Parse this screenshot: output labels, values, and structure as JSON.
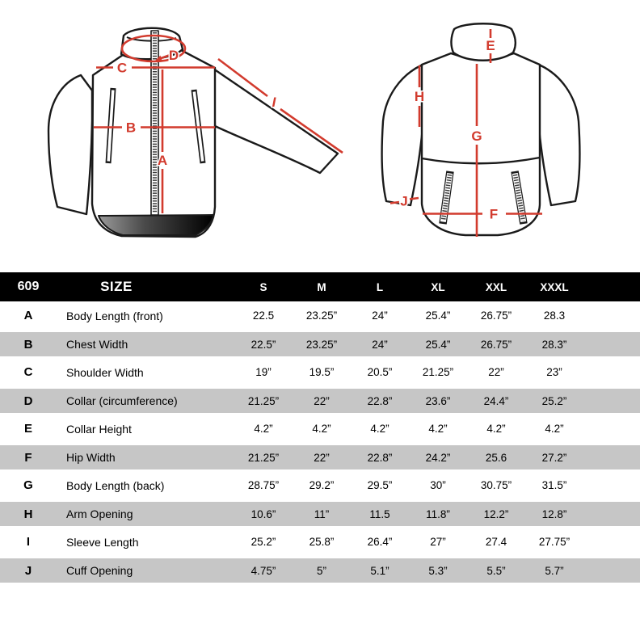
{
  "colors": {
    "accent_red": "#d23b2e",
    "outline_black": "#1a1a1a",
    "row_gray": "#c6c6c6",
    "header_bg": "#000000",
    "header_text": "#ffffff"
  },
  "diagram": {
    "front_labels": {
      "A": "A",
      "B": "B",
      "C": "C",
      "D": "D",
      "I": "I"
    },
    "back_labels": {
      "E": "E",
      "F": "F",
      "G": "G",
      "H": "H",
      "J": "J"
    }
  },
  "table": {
    "model": "609",
    "size_header": "SIZE",
    "columns": [
      "S",
      "M",
      "L",
      "XL",
      "XXL",
      "XXXL"
    ],
    "rows": [
      {
        "letter": "A",
        "label": "Body Length (front)",
        "values": [
          "22.5",
          "23.25”",
          "24”",
          "25.4”",
          "26.75”",
          "28.3"
        ]
      },
      {
        "letter": "B",
        "label": "Chest Width",
        "values": [
          "22.5”",
          "23.25”",
          "24”",
          "25.4”",
          "26.75”",
          "28.3”"
        ]
      },
      {
        "letter": "C",
        "label": "Shoulder Width",
        "values": [
          "19”",
          "19.5”",
          "20.5”",
          "21.25”",
          "22”",
          "23”"
        ]
      },
      {
        "letter": "D",
        "label": "Collar (circumference)",
        "values": [
          "21.25”",
          "22”",
          "22.8”",
          "23.6”",
          "24.4”",
          "25.2”"
        ]
      },
      {
        "letter": "E",
        "label": "Collar Height",
        "values": [
          "4.2”",
          "4.2”",
          "4.2”",
          "4.2”",
          "4.2”",
          "4.2”"
        ]
      },
      {
        "letter": "F",
        "label": "Hip Width",
        "values": [
          "21.25”",
          "22”",
          "22.8”",
          "24.2”",
          "25.6",
          "27.2”"
        ]
      },
      {
        "letter": "G",
        "label": "Body Length (back)",
        "values": [
          "28.75”",
          "29.2”",
          "29.5”",
          "30”",
          "30.75”",
          "31.5”"
        ]
      },
      {
        "letter": "H",
        "label": "Arm Opening",
        "values": [
          "10.6”",
          "11”",
          "11.5",
          "11.8”",
          "12.2”",
          "12.8”"
        ]
      },
      {
        "letter": "I",
        "label": "Sleeve Length",
        "values": [
          "25.2”",
          "25.8”",
          "26.4”",
          "27”",
          "27.4",
          "27.75”"
        ]
      },
      {
        "letter": "J",
        "label": "Cuff Opening",
        "values": [
          "4.75”",
          "5”",
          "5.1”",
          "5.3”",
          "5.5”",
          "5.7”"
        ]
      }
    ]
  }
}
